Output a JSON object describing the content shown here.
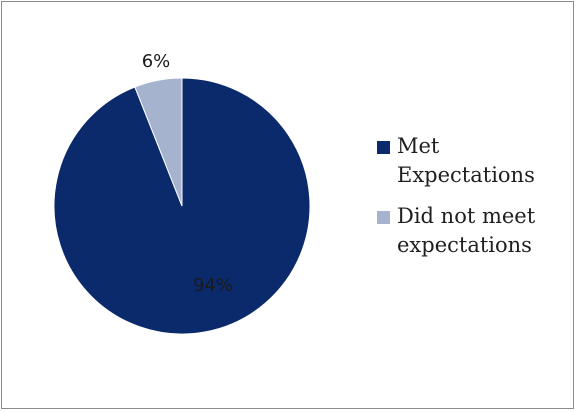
{
  "chart_data": {
    "type": "pie",
    "title": "",
    "slices": [
      {
        "label": "Met\nExpectations",
        "value": 94,
        "display": "94%",
        "color": "#0b2a6b"
      },
      {
        "label": "Did not meet\nexpectations",
        "value": 6,
        "display": "6%",
        "color": "#a6b3cf"
      }
    ],
    "legend_position": "right"
  }
}
